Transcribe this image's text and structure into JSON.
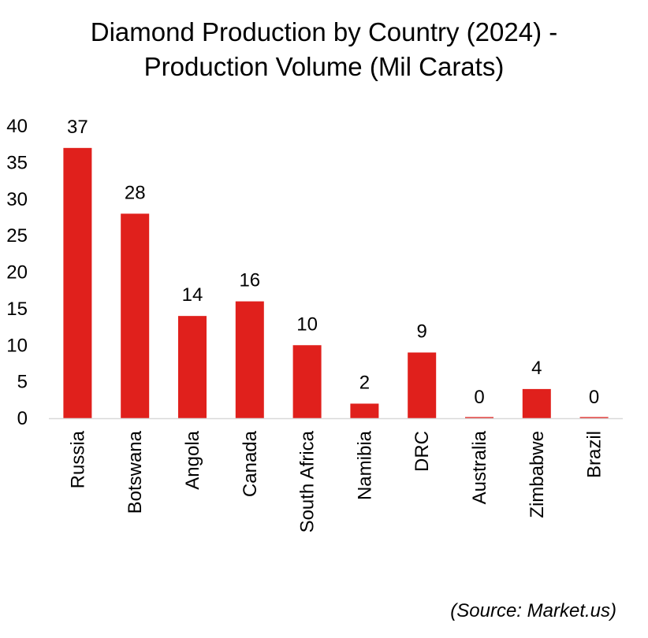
{
  "chart_data": {
    "type": "bar",
    "title": [
      "Diamond Production by Country (2024) -",
      "Production Volume (Mil Carats)"
    ],
    "categories": [
      "Russia",
      "Botswana",
      "Angola",
      "Canada",
      "South Africa",
      "Namibia",
      "DRC",
      "Australia",
      "Zimbabwe",
      "Brazil"
    ],
    "values": [
      37,
      28,
      14,
      16,
      10,
      2,
      9,
      0,
      4,
      0
    ],
    "data_labels": [
      "37",
      "28",
      "14",
      "16",
      "10",
      "2",
      "9",
      "0",
      "4",
      "0"
    ],
    "ylim": [
      0,
      40
    ],
    "yticks": [
      0,
      5,
      10,
      15,
      20,
      25,
      30,
      35,
      40
    ],
    "xlabel": "",
    "ylabel": "",
    "grid": false,
    "legend": "none",
    "bar_color": "#e0201c",
    "axis_color": "#d9d9d9"
  },
  "source_note": "(Source: Market.us)"
}
